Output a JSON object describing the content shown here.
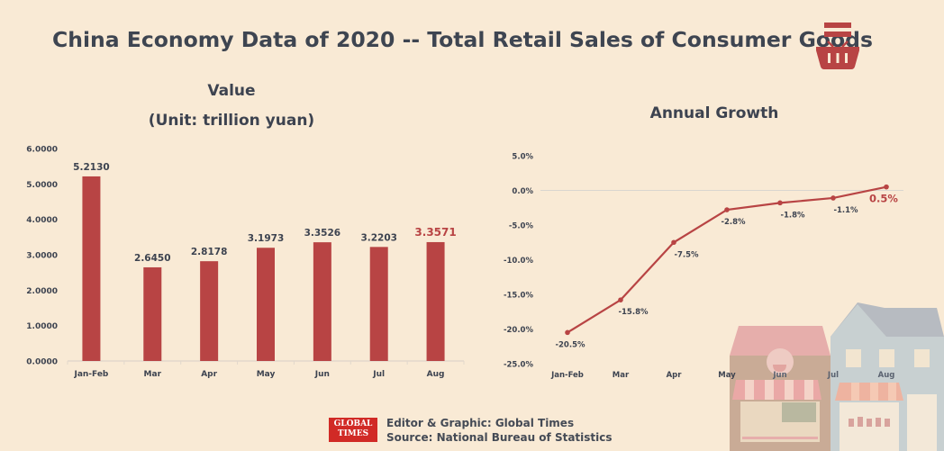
{
  "header": {
    "title": "China Economy Data of 2020 -- Total Retail Sales of Consumer Goods",
    "icon": "shopping-basket-icon"
  },
  "colors": {
    "background": "#f9ead5",
    "accent": "#b84444",
    "text": "#3d4350",
    "axis": "#e2d8cc"
  },
  "chart_data": [
    {
      "type": "bar",
      "title": "Value",
      "subtitle": "(Unit: trillion yuan)",
      "categories": [
        "Jan-Feb",
        "Mar",
        "Apr",
        "May",
        "Jun",
        "Jul",
        "Aug"
      ],
      "values": [
        5.213,
        2.645,
        2.8178,
        3.1973,
        3.3526,
        3.2203,
        3.3571
      ],
      "value_labels": [
        "5.2130",
        "2.6450",
        "2.8178",
        "3.1973",
        "3.3526",
        "3.2203",
        "3.3571"
      ],
      "highlight_index": 6,
      "xlabel": "",
      "ylabel": "",
      "ylim": [
        0,
        6
      ],
      "yticks": [
        0,
        1,
        2,
        3,
        4,
        5,
        6
      ],
      "ytick_labels": [
        "0.0000",
        "1.0000",
        "2.0000",
        "3.0000",
        "4.0000",
        "5.0000",
        "6.0000"
      ],
      "grid": false,
      "legend": "none"
    },
    {
      "type": "line",
      "title": "Annual Growth",
      "categories": [
        "Jan-Feb",
        "Mar",
        "Apr",
        "May",
        "Jun",
        "Jul",
        "Aug"
      ],
      "values": [
        -20.5,
        -15.8,
        -7.5,
        -2.8,
        -1.8,
        -1.1,
        0.5
      ],
      "value_labels": [
        "-20.5%",
        "-15.8%",
        "-7.5%",
        "-2.8%",
        "-1.8%",
        "-1.1%",
        "0.5%"
      ],
      "highlight_index": 6,
      "xlabel": "",
      "ylabel": "",
      "ylim": [
        -25,
        5
      ],
      "yticks": [
        5,
        0,
        -5,
        -10,
        -15,
        -20,
        -25
      ],
      "ytick_labels": [
        "5.0%",
        "0.0%",
        "-5.0%",
        "-10.0%",
        "-15.0%",
        "-20.0%",
        "-25.0%"
      ],
      "grid": false,
      "legend": "none"
    }
  ],
  "footer": {
    "logo_line1": "GLOBAL",
    "logo_line2": "TIMES",
    "editor": "Editor & Graphic: Global Times",
    "source": "Source: National Bureau of Statistics"
  }
}
